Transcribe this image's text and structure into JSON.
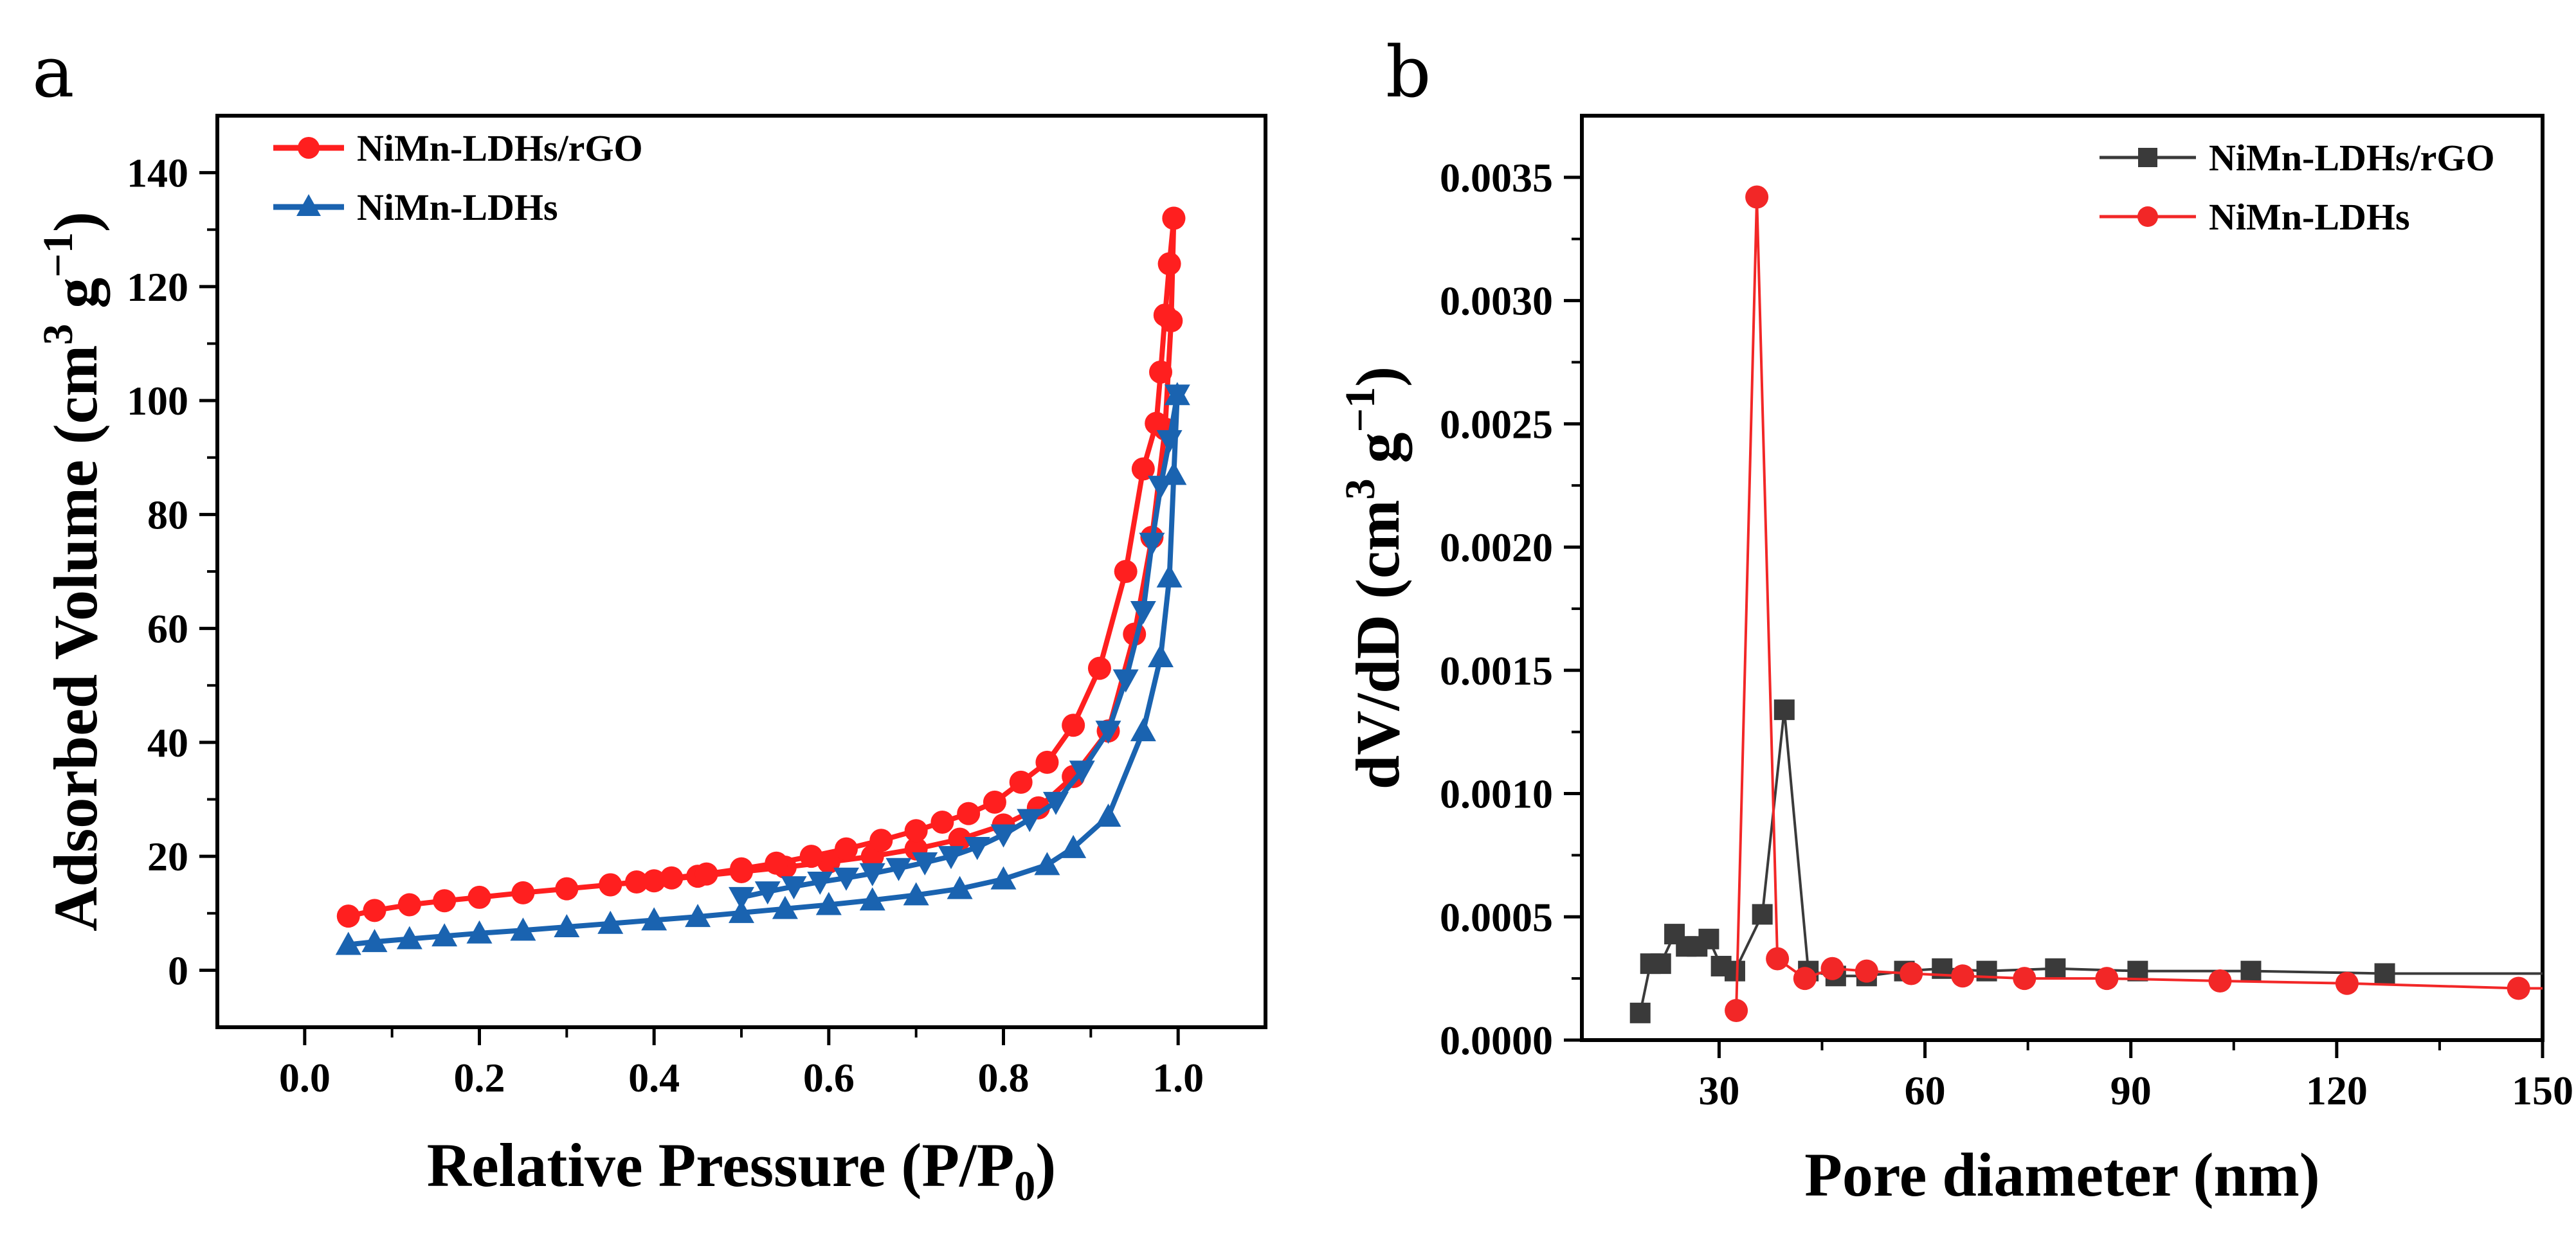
{
  "chart_data": [
    {
      "type": "line",
      "panel_label": "a",
      "xlabel_main": "Relative Pressure (P/P",
      "xlabel_sub": "0",
      "xlabel_close": ")",
      "ylabel_main": "Adsorbed Volume (cm",
      "ylabel_sup1": "3",
      "ylabel_mid": " g",
      "ylabel_sup2": "−1",
      "ylabel_close": ")",
      "xlim": [
        -0.1,
        1.1
      ],
      "ylim": [
        -10,
        150
      ],
      "xticks": [
        0.0,
        0.2,
        0.4,
        0.6,
        0.8,
        1.0
      ],
      "xtick_labels": [
        "0.0",
        "0.2",
        "0.4",
        "0.6",
        "0.8",
        "1.0"
      ],
      "yticks": [
        0,
        20,
        40,
        60,
        80,
        100,
        120,
        140
      ],
      "ytick_labels": [
        "0",
        "20",
        "40",
        "60",
        "80",
        "100",
        "120",
        "140"
      ],
      "legend_position": "top-left",
      "series": [
        {
          "name": "NiMn-LDHs/rGO",
          "color": "#ff1f1f",
          "marker": "circle",
          "adsorption": {
            "x": [
              0.05,
              0.08,
              0.12,
              0.16,
              0.2,
              0.25,
              0.3,
              0.35,
              0.4,
              0.45,
              0.5,
              0.55,
              0.6,
              0.65,
              0.7,
              0.75,
              0.8,
              0.84,
              0.88,
              0.92,
              0.95,
              0.97,
              0.985,
              0.992,
              0.995
            ],
            "y": [
              9.5,
              10.5,
              11.5,
              12.2,
              12.8,
              13.6,
              14.3,
              15.0,
              15.7,
              16.5,
              17.3,
              18.1,
              19.0,
              20.0,
              21.3,
              23.0,
              25.5,
              28.5,
              34.0,
              42.0,
              59.0,
              76.0,
              95.0,
              114.0,
              132.0
            ]
          },
          "desorption": {
            "x": [
              0.995,
              0.99,
              0.985,
              0.98,
              0.975,
              0.96,
              0.94,
              0.91,
              0.88,
              0.85,
              0.82,
              0.79,
              0.76,
              0.73,
              0.7,
              0.66,
              0.62,
              0.58,
              0.54,
              0.5,
              0.46,
              0.42,
              0.38,
              0.35
            ],
            "y": [
              132.0,
              124.0,
              115.0,
              105.0,
              96.0,
              88.0,
              70.0,
              53.0,
              43.0,
              36.5,
              33.0,
              29.5,
              27.5,
              26.0,
              24.5,
              22.8,
              21.3,
              20.0,
              18.8,
              17.8,
              16.9,
              16.2,
              15.5,
              15.0
            ]
          }
        },
        {
          "name": "NiMn-LDHs",
          "color": "#1a63b0",
          "marker": "triangle",
          "adsorption": {
            "x": [
              0.05,
              0.08,
              0.12,
              0.16,
              0.2,
              0.25,
              0.3,
              0.35,
              0.4,
              0.45,
              0.5,
              0.55,
              0.6,
              0.65,
              0.7,
              0.75,
              0.8,
              0.85,
              0.88,
              0.92,
              0.96,
              0.98,
              0.99,
              0.995,
              0.999
            ],
            "y": [
              4.5,
              5.0,
              5.5,
              6.0,
              6.5,
              7.0,
              7.6,
              8.2,
              8.8,
              9.4,
              10.1,
              10.8,
              11.5,
              12.3,
              13.2,
              14.3,
              16.0,
              18.5,
              21.5,
              27.0,
              42.0,
              55.0,
              69.0,
              87.0,
              101.0
            ]
          },
          "desorption": {
            "x": [
              0.999,
              0.99,
              0.98,
              0.97,
              0.96,
              0.94,
              0.92,
              0.89,
              0.86,
              0.83,
              0.8,
              0.77,
              0.74,
              0.71,
              0.68,
              0.65,
              0.62,
              0.59,
              0.56,
              0.53,
              0.5
            ],
            "y": [
              101.0,
              93.0,
              85.0,
              75.0,
              63.0,
              51.0,
              42.0,
              35.0,
              29.5,
              26.5,
              23.8,
              21.6,
              20.0,
              18.9,
              17.9,
              17.0,
              16.2,
              15.5,
              14.7,
              13.8,
              12.8
            ]
          }
        }
      ]
    },
    {
      "type": "line",
      "panel_label": "b",
      "xlabel": "Pore diameter (nm)",
      "ylabel_main": "dV/dD (cm",
      "ylabel_sup1": "3",
      "ylabel_mid": " g",
      "ylabel_sup2": "−1",
      "ylabel_close": ")",
      "xlim": [
        10,
        150
      ],
      "ylim": [
        0,
        0.00375
      ],
      "xticks": [
        30,
        60,
        90,
        120,
        150
      ],
      "xtick_labels": [
        "30",
        "60",
        "90",
        "120",
        "150"
      ],
      "yticks": [
        0,
        0.0005,
        0.001,
        0.0015,
        0.002,
        0.0025,
        0.003,
        0.0035
      ],
      "ytick_labels": [
        "0.0000",
        "0.0005",
        "0.0010",
        "0.0015",
        "0.0020",
        "0.0025",
        "0.0030",
        "0.0035"
      ],
      "legend_position": "top-right",
      "series": [
        {
          "name": "NiMn-LDHs/rGO",
          "color": "#3a3a3a",
          "marker": "square",
          "x": [
            18.5,
            20,
            21.5,
            23.5,
            25.2,
            26.8,
            28.5,
            30.3,
            32.3,
            36.3,
            39.5,
            43.0,
            47.0,
            51.5,
            57.0,
            62.5,
            69.0,
            79.0,
            91.0,
            107.5,
            127.0,
            150.0
          ],
          "y": [
            0.00011,
            0.00031,
            0.00031,
            0.00043,
            0.00038,
            0.00038,
            0.00041,
            0.0003,
            0.00028,
            0.00051,
            0.00134,
            0.00028,
            0.00026,
            0.00026,
            0.00028,
            0.00029,
            0.00028,
            0.00029,
            0.00028,
            0.00028,
            0.00027,
            0.00027
          ]
        },
        {
          "name": "NiMn-LDHs",
          "color": "#f22727",
          "marker": "circle",
          "x": [
            32.5,
            35.5,
            38.5,
            42.5,
            46.5,
            51.5,
            58.0,
            65.5,
            74.5,
            86.5,
            103.0,
            121.5,
            146.5,
            150.0
          ],
          "y": [
            0.00012,
            0.00342,
            0.00033,
            0.00025,
            0.00029,
            0.00028,
            0.00027,
            0.00026,
            0.00025,
            0.00025,
            0.00024,
            0.00023,
            0.00021,
            0.00021
          ]
        }
      ]
    }
  ]
}
